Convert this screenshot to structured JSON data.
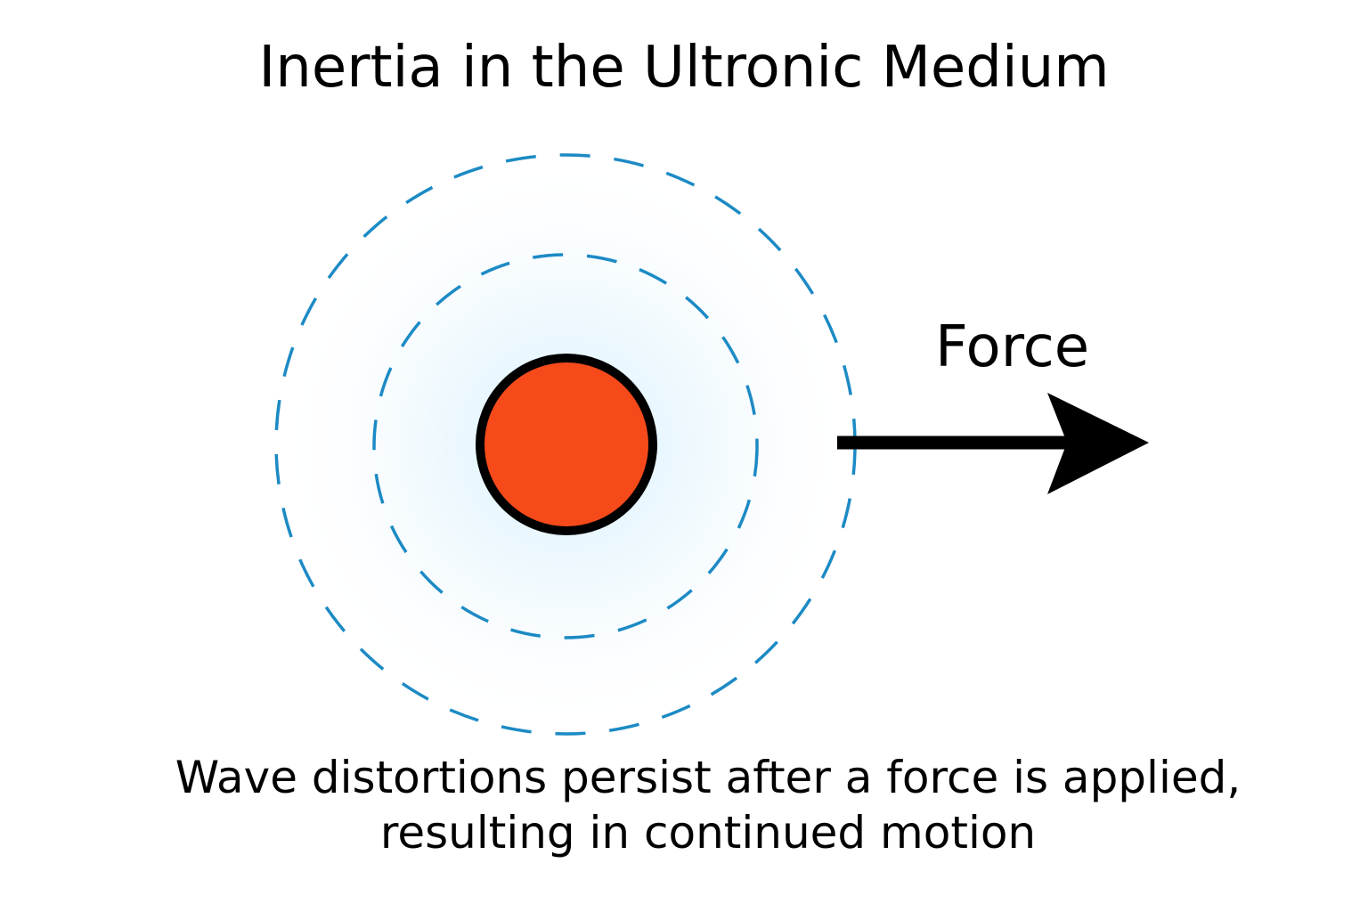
{
  "title": "Inertia in the Ultronic Medium",
  "force_label": "Force",
  "caption": {
    "line1": "Wave distortions persist after a force is applied,",
    "line2": "resulting in continued motion"
  },
  "colors": {
    "particle_fill": "#f64a1b",
    "particle_stroke": "#000000",
    "wave_ring": "#1c8ac4",
    "glow": "#d9f2fd",
    "arrow": "#000000"
  }
}
